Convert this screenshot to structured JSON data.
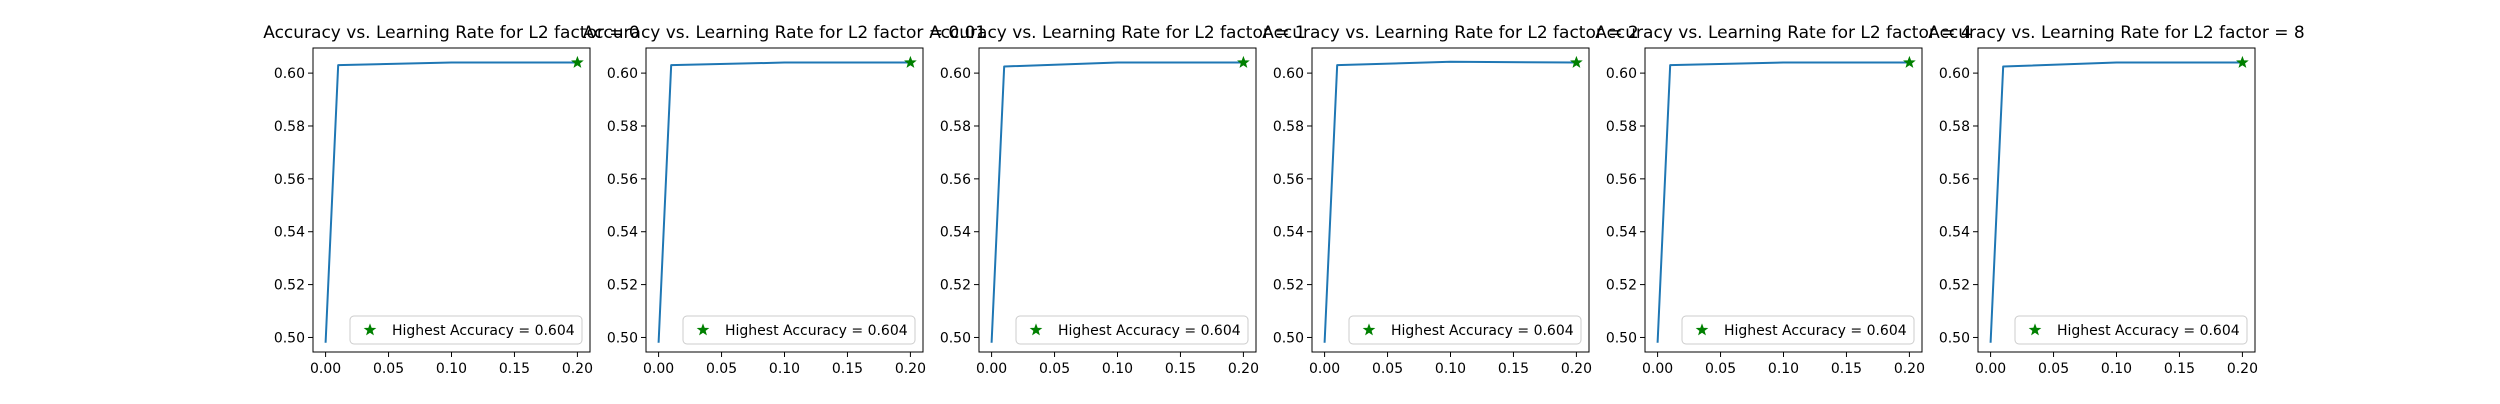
{
  "chart_data": [
    {
      "type": "line",
      "title": "Accuracy vs. Learning Rate for L2 factor = 0",
      "x": [
        0.0,
        0.01,
        0.1,
        0.2
      ],
      "series": [
        {
          "values": [
            0.498,
            0.603,
            0.604,
            0.604
          ]
        }
      ],
      "marker": {
        "x": 0.2,
        "y": 0.604
      },
      "legend": {
        "label": "Highest Accuracy = 0.604",
        "placement": "lower-right"
      },
      "xlim": [
        -0.01,
        0.21
      ],
      "ylim": [
        0.4945,
        0.6095
      ],
      "xticks": [
        "0.00",
        "0.05",
        "0.10",
        "0.15",
        "0.20"
      ],
      "yticks": [
        "0.50",
        "0.52",
        "0.54",
        "0.56",
        "0.58",
        "0.60"
      ],
      "grid": false
    },
    {
      "type": "line",
      "title": "Accuracy vs. Learning Rate for L2 factor = 0.01",
      "x": [
        0.0,
        0.01,
        0.1,
        0.2
      ],
      "series": [
        {
          "values": [
            0.498,
            0.603,
            0.604,
            0.604
          ]
        }
      ],
      "marker": {
        "x": 0.2,
        "y": 0.604
      },
      "legend": {
        "label": "Highest Accuracy = 0.604",
        "placement": "lower-right"
      },
      "xlim": [
        -0.01,
        0.21
      ],
      "ylim": [
        0.4945,
        0.6095
      ],
      "xticks": [
        "0.00",
        "0.05",
        "0.10",
        "0.15",
        "0.20"
      ],
      "yticks": [
        "0.50",
        "0.52",
        "0.54",
        "0.56",
        "0.58",
        "0.60"
      ],
      "grid": false
    },
    {
      "type": "line",
      "title": "Accuracy vs. Learning Rate for L2 factor = 1",
      "x": [
        0.0,
        0.01,
        0.1,
        0.2
      ],
      "series": [
        {
          "values": [
            0.498,
            0.6025,
            0.604,
            0.604
          ]
        }
      ],
      "marker": {
        "x": 0.2,
        "y": 0.604
      },
      "legend": {
        "label": "Highest Accuracy = 0.604",
        "placement": "lower-right"
      },
      "xlim": [
        -0.01,
        0.21
      ],
      "ylim": [
        0.4945,
        0.6095
      ],
      "xticks": [
        "0.00",
        "0.05",
        "0.10",
        "0.15",
        "0.20"
      ],
      "yticks": [
        "0.50",
        "0.52",
        "0.54",
        "0.56",
        "0.58",
        "0.60"
      ],
      "grid": false
    },
    {
      "type": "line",
      "title": "Accuracy vs. Learning Rate for L2 factor = 2",
      "x": [
        0.0,
        0.01,
        0.1,
        0.2
      ],
      "series": [
        {
          "values": [
            0.498,
            0.603,
            0.6043,
            0.604
          ]
        }
      ],
      "marker": {
        "x": 0.2,
        "y": 0.604
      },
      "legend": {
        "label": "Highest Accuracy = 0.604",
        "placement": "lower-right"
      },
      "xlim": [
        -0.01,
        0.21
      ],
      "ylim": [
        0.4945,
        0.6095
      ],
      "xticks": [
        "0.00",
        "0.05",
        "0.10",
        "0.15",
        "0.20"
      ],
      "yticks": [
        "0.50",
        "0.52",
        "0.54",
        "0.56",
        "0.58",
        "0.60"
      ],
      "grid": false
    },
    {
      "type": "line",
      "title": "Accuracy vs. Learning Rate for L2 factor = 4",
      "x": [
        0.0,
        0.01,
        0.1,
        0.2
      ],
      "series": [
        {
          "values": [
            0.498,
            0.603,
            0.604,
            0.604
          ]
        }
      ],
      "marker": {
        "x": 0.2,
        "y": 0.604
      },
      "legend": {
        "label": "Highest Accuracy = 0.604",
        "placement": "lower-right"
      },
      "xlim": [
        -0.01,
        0.21
      ],
      "ylim": [
        0.4945,
        0.6095
      ],
      "xticks": [
        "0.00",
        "0.05",
        "0.10",
        "0.15",
        "0.20"
      ],
      "yticks": [
        "0.50",
        "0.52",
        "0.54",
        "0.56",
        "0.58",
        "0.60"
      ],
      "grid": false
    },
    {
      "type": "line",
      "title": "Accuracy vs. Learning Rate for L2 factor = 8",
      "x": [
        0.0,
        0.01,
        0.1,
        0.2
      ],
      "series": [
        {
          "values": [
            0.498,
            0.6025,
            0.604,
            0.604
          ]
        }
      ],
      "marker": {
        "x": 0.2,
        "y": 0.604
      },
      "legend": {
        "label": "Highest Accuracy = 0.604",
        "placement": "lower-right"
      },
      "xlim": [
        -0.01,
        0.21
      ],
      "ylim": [
        0.4945,
        0.6095
      ],
      "xticks": [
        "0.00",
        "0.05",
        "0.10",
        "0.15",
        "0.20"
      ],
      "yticks": [
        "0.50",
        "0.52",
        "0.54",
        "0.56",
        "0.58",
        "0.60"
      ],
      "grid": false
    }
  ],
  "colors": {
    "line": "#1f77b4",
    "marker": "#008000",
    "legend_border": "#cccccc"
  }
}
